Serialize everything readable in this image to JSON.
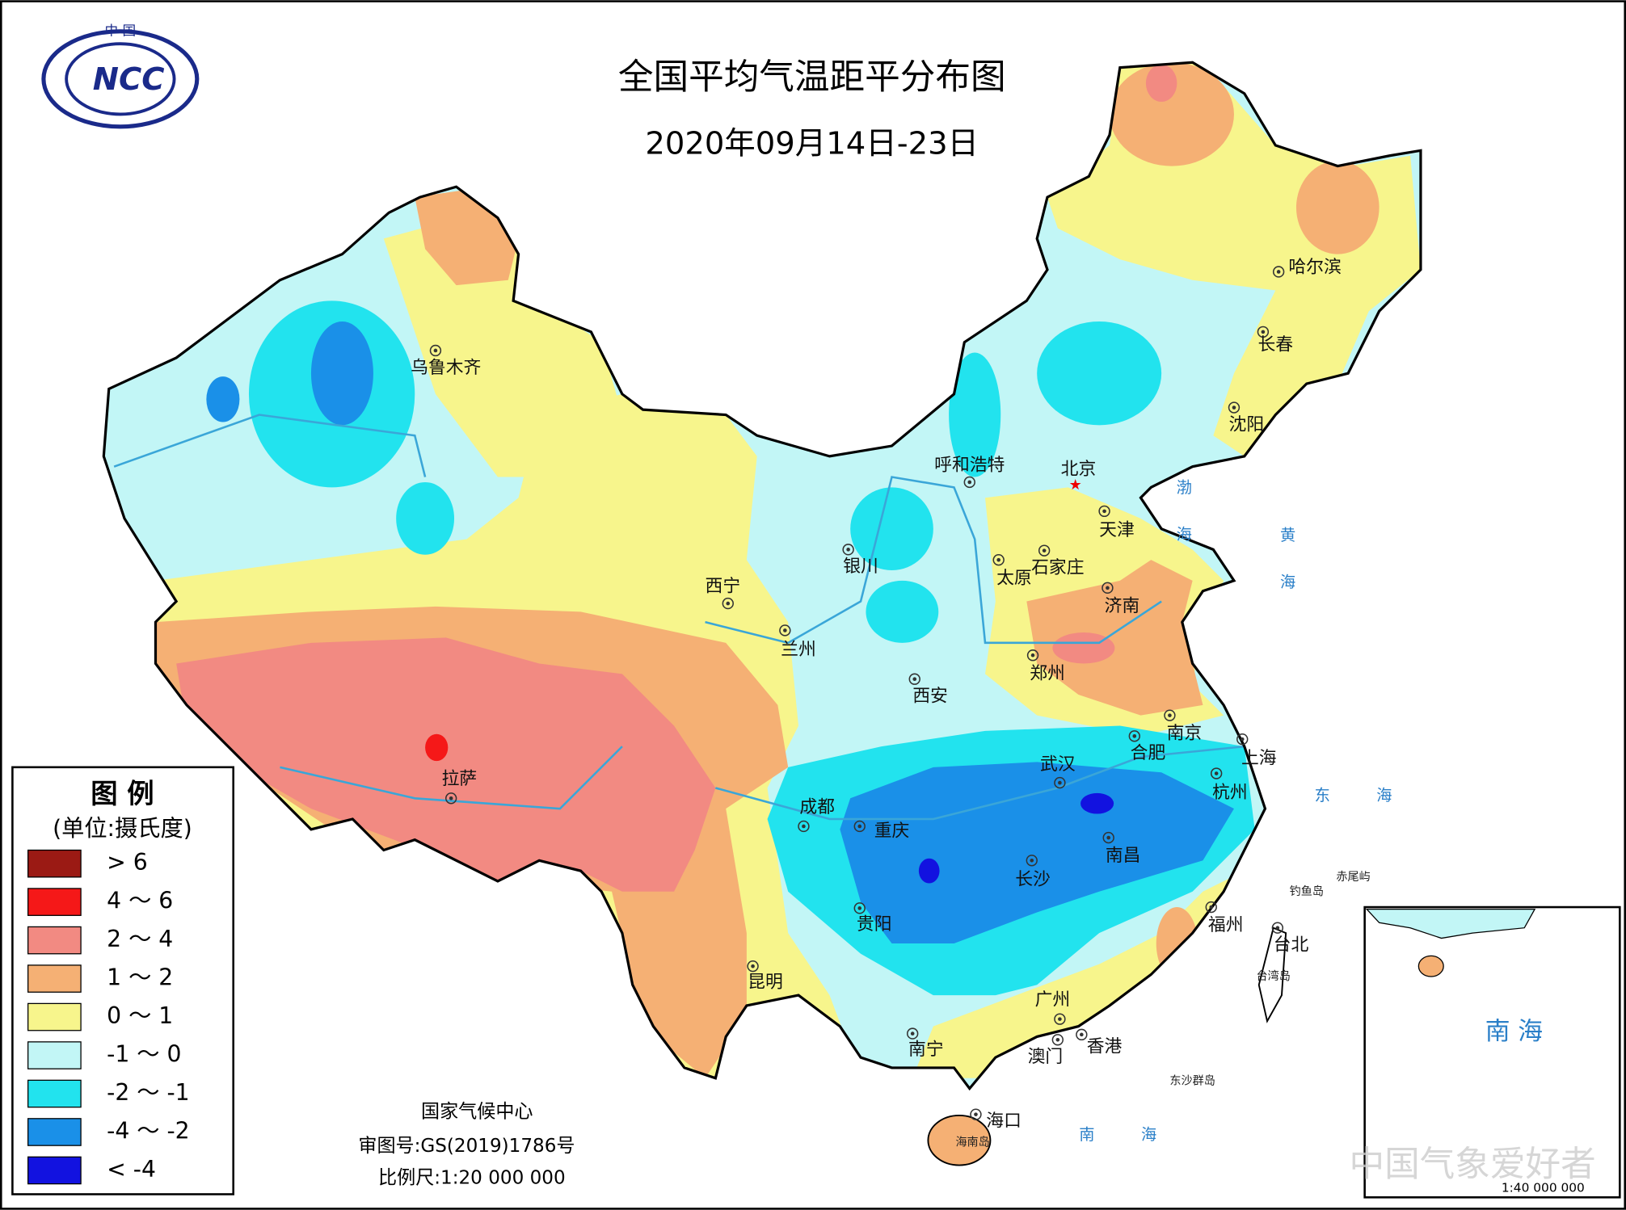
{
  "header": {
    "title": "全国平均气温距平分布图",
    "subtitle": "2020年09月14日-23日"
  },
  "logo": {
    "top": "中 国",
    "mark": "NCC"
  },
  "legend": {
    "title": "图 例",
    "unit": "(单位:摄氏度)",
    "items": [
      {
        "label": "> 6",
        "color": "#9b1a14"
      },
      {
        "label": "4 ～ 6",
        "color": "#f51818"
      },
      {
        "label": "2 ～ 4",
        "color": "#f28a82"
      },
      {
        "label": "1 ～ 2",
        "color": "#f5b074"
      },
      {
        "label": "0 ～ 1",
        "color": "#f7f58c"
      },
      {
        "label": "-1 ～ 0",
        "color": "#c2f6f6"
      },
      {
        "label": "-2 ～ -1",
        "color": "#22e3ee"
      },
      {
        "label": "-4 ～ -2",
        "color": "#1a90e8"
      },
      {
        "label": "< -4",
        "color": "#1212e0"
      }
    ]
  },
  "cities": [
    "乌鲁木齐",
    "哈尔滨",
    "长春",
    "沈阳",
    "呼和浩特",
    "北京",
    "天津",
    "石家庄",
    "太原",
    "济南",
    "银川",
    "西宁",
    "兰州",
    "郑州",
    "西安",
    "南京",
    "合肥",
    "上海",
    "武汉",
    "杭州",
    "成都",
    "重庆",
    "拉萨",
    "南昌",
    "长沙",
    "贵阳",
    "福州",
    "台北",
    "昆明",
    "广州",
    "香港",
    "澳门",
    "南宁",
    "海口"
  ],
  "places": [
    "赤尾屿",
    "钓鱼岛",
    "台湾岛",
    "东沙群岛",
    "海南岛"
  ],
  "seas": [
    "渤海",
    "黄海",
    "东 海",
    "南 海"
  ],
  "footer": {
    "org": "国家气候中心",
    "approval": "审图号:GS(2019)1786号",
    "scale": "比例尺:1:20 000 000"
  },
  "inset": {
    "label": "南 海",
    "scale": "1:40 000 000"
  },
  "watermark": "中国气象爱好者"
}
